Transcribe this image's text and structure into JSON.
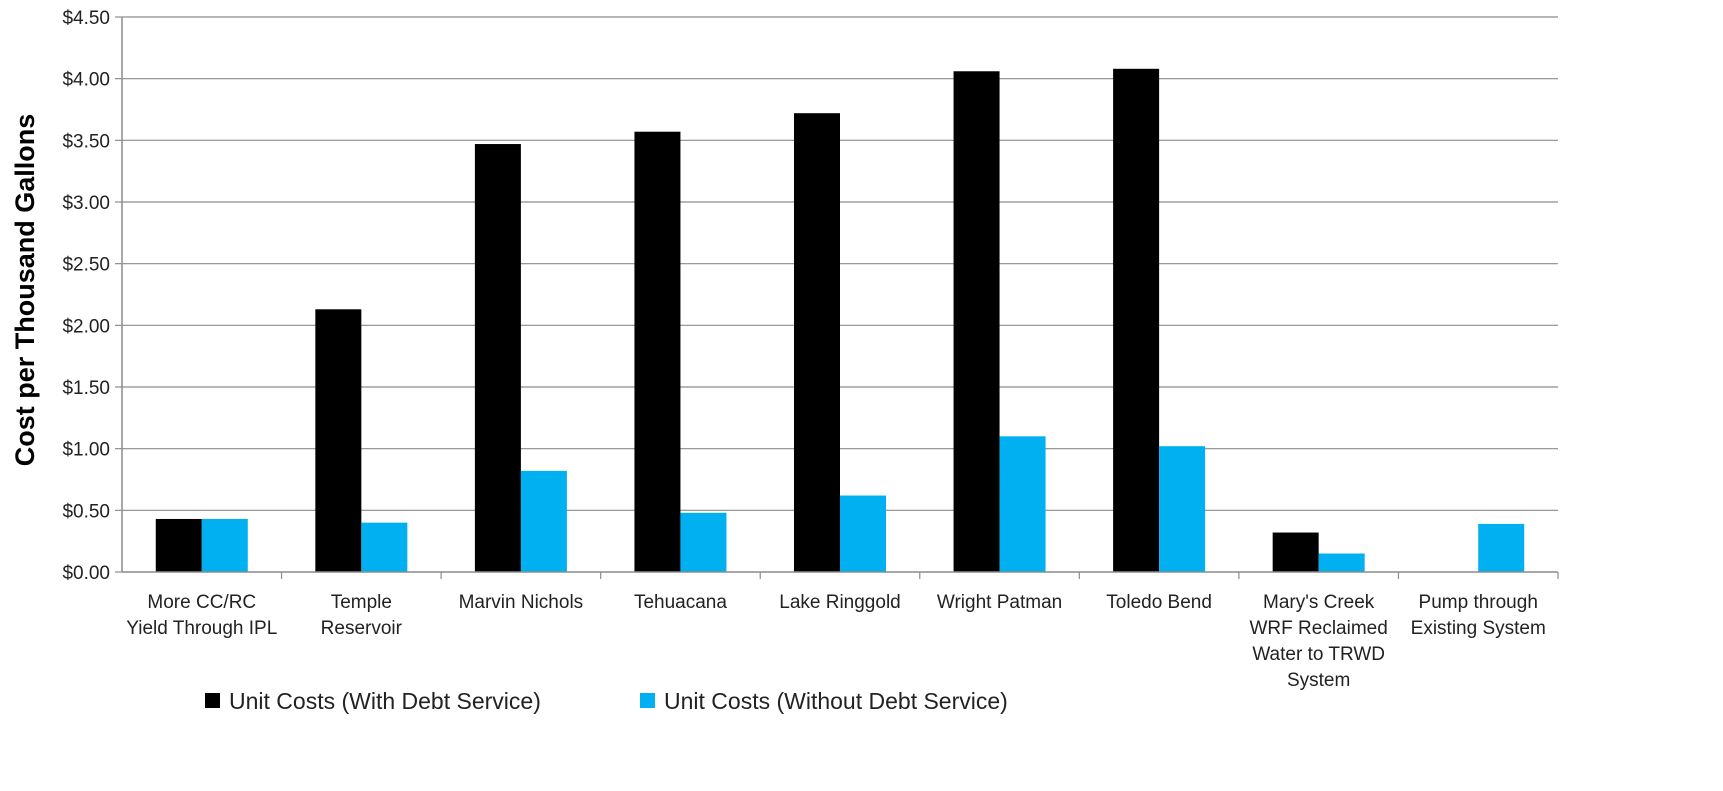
{
  "chart_data": {
    "type": "bar",
    "title": "",
    "xlabel": "",
    "ylabel": "Cost per Thousand Gallons",
    "ylim": [
      0,
      4.5
    ],
    "ytick_step": 0.5,
    "ytick_labels": [
      "$0.00",
      "$0.50",
      "$1.00",
      "$1.50",
      "$2.00",
      "$2.50",
      "$3.00",
      "$3.50",
      "$4.00",
      "$4.50"
    ],
    "grid": true,
    "legend_position": "bottom",
    "categories": [
      [
        "More CC/RC",
        "Yield Through IPL"
      ],
      [
        "Temple",
        "Reservoir"
      ],
      [
        "Marvin Nichols"
      ],
      [
        "Tehuacana"
      ],
      [
        "Lake Ringgold"
      ],
      [
        "Wright Patman"
      ],
      [
        "Toledo Bend"
      ],
      [
        "Mary's Creek",
        "WRF Reclaimed",
        "Water to TRWD",
        "System"
      ],
      [
        "Pump through",
        "Existing System"
      ]
    ],
    "series": [
      {
        "name": "Unit Costs (With Debt Service)",
        "color": "#000000",
        "values": [
          0.43,
          2.13,
          3.47,
          3.57,
          3.72,
          4.06,
          4.08,
          0.32,
          0.0
        ]
      },
      {
        "name": "Unit Costs (Without Debt Service)",
        "color": "#00b0f0",
        "values": [
          0.43,
          0.4,
          0.82,
          0.48,
          0.62,
          1.1,
          1.02,
          0.15,
          0.39
        ]
      }
    ]
  }
}
